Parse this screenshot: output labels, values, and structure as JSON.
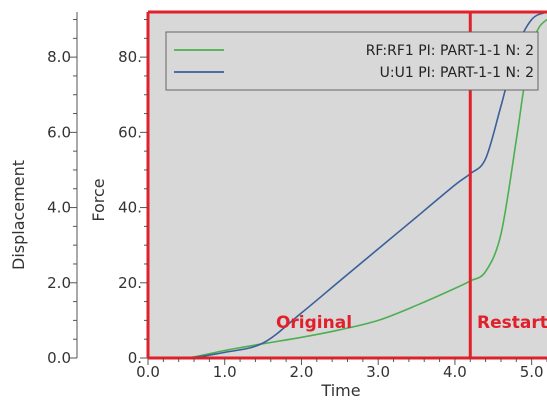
{
  "chart_data": {
    "type": "line",
    "xlabel": "Time",
    "ylabel_left": "Displacement",
    "ylabel_right": "Force",
    "xlim": [
      0.0,
      5.2
    ],
    "ylim_force": [
      0,
      92
    ],
    "ylim_displacement": [
      0,
      9.2
    ],
    "x_ticks": [
      "0.0",
      "1.0",
      "2.0",
      "3.0",
      "4.0",
      "5.0"
    ],
    "force_ticks": [
      "0.",
      "20.",
      "40.",
      "60.",
      "80."
    ],
    "displacement_ticks": [
      "0.0",
      "2.0",
      "4.0",
      "6.0",
      "8.0"
    ],
    "grid": false,
    "legend_position": "top-left",
    "background_color": "#d8d8d8",
    "annotation_color": "#e0202a",
    "restart_time": 4.2,
    "annotations": [
      "Original",
      "Restart"
    ],
    "series": [
      {
        "name": "RF:RF1 PI: PART-1-1 N: 2",
        "color": "#4caf50",
        "x": [
          0.0,
          0.5,
          1.0,
          1.5,
          2.0,
          2.5,
          3.0,
          3.5,
          4.0,
          4.2,
          4.4,
          4.6,
          4.8,
          4.9,
          5.0,
          5.1,
          5.2
        ],
        "y": [
          0.0,
          0.0,
          2.0,
          3.8,
          5.5,
          7.5,
          10.0,
          14.0,
          18.5,
          20.5,
          23.0,
          33.0,
          58.0,
          72.0,
          83.0,
          88.0,
          90.0
        ]
      },
      {
        "name": "U:U1 PI: PART-1-1 N: 2",
        "color": "#3a5f9a",
        "x": [
          0.0,
          0.5,
          1.0,
          1.5,
          2.0,
          2.5,
          3.0,
          3.5,
          4.0,
          4.2,
          4.4,
          4.6,
          4.8,
          5.0,
          5.2
        ],
        "y": [
          0.0,
          0.0,
          1.5,
          4.0,
          12.0,
          20.5,
          29.0,
          37.5,
          46.0,
          49.0,
          53.0,
          67.0,
          82.0,
          90.0,
          92.0
        ]
      }
    ]
  }
}
